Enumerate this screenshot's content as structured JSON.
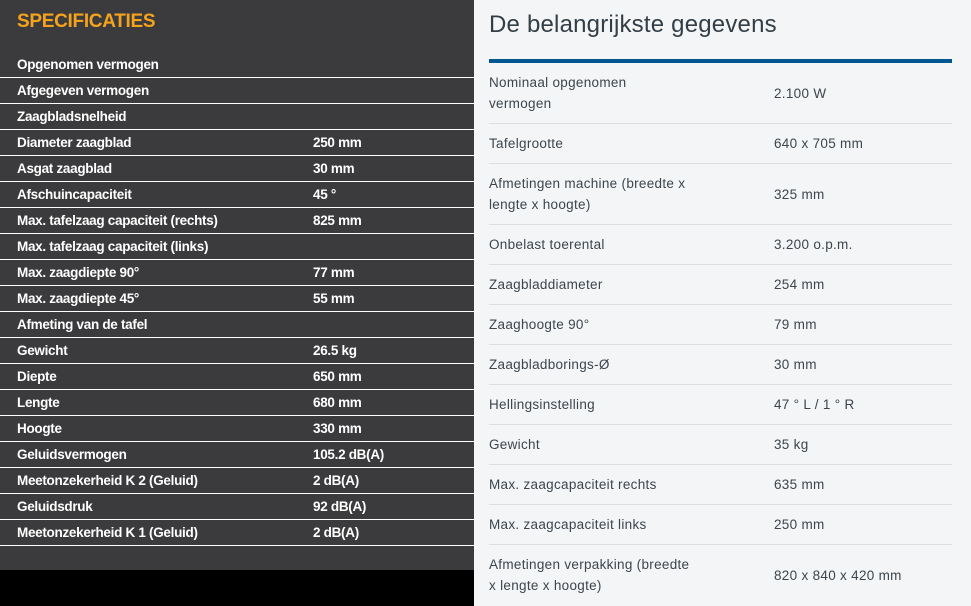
{
  "left_panel": {
    "title": "SPECIFICATIES",
    "title_color": "#f5a31c",
    "bg_color": "#3b3b3d",
    "rows": [
      {
        "label": "Opgenomen vermogen",
        "value": ""
      },
      {
        "label": "Afgegeven vermogen",
        "value": ""
      },
      {
        "label": "Zaagbladsnelheid",
        "value": ""
      },
      {
        "label": "Diameter zaagblad",
        "value": "250 mm"
      },
      {
        "label": "Asgat zaagblad",
        "value": "30 mm"
      },
      {
        "label": "Afschuincapaciteit",
        "value": "45 °"
      },
      {
        "label": "Max. tafelzaag capaciteit (rechts)",
        "value": "825 mm"
      },
      {
        "label": "Max. tafelzaag capaciteit (links)",
        "value": ""
      },
      {
        "label": "Max. zaagdiepte 90°",
        "value": "77 mm"
      },
      {
        "label": "Max. zaagdiepte 45°",
        "value": "55 mm"
      },
      {
        "label": "Afmeting van de tafel",
        "value": ""
      },
      {
        "label": "Gewicht",
        "value": "26.5 kg"
      },
      {
        "label": "Diepte",
        "value": "650 mm"
      },
      {
        "label": "Lengte",
        "value": "680 mm"
      },
      {
        "label": "Hoogte",
        "value": "330 mm"
      },
      {
        "label": "Geluidsvermogen",
        "value": "105.2 dB(A)"
      },
      {
        "label": "Meetonzekerheid K 2 (Geluid)",
        "value": "2 dB(A)"
      },
      {
        "label": "Geluidsdruk",
        "value": "92 dB(A)"
      },
      {
        "label": "Meetonzekerheid K 1 (Geluid)",
        "value": "2 dB(A)"
      }
    ]
  },
  "right_panel": {
    "title": "De belangrijkste gegevens",
    "accent_color": "#005691",
    "bg_color": "#f4f5f6",
    "rows": [
      {
        "label": "Nominaal opgenomen\nvermogen",
        "value": "2.100 W"
      },
      {
        "label": "Tafelgrootte",
        "value": "640 x 705 mm"
      },
      {
        "label": "Afmetingen machine (breedte x\nlengte x hoogte)",
        "value": "325 mm"
      },
      {
        "label": "Onbelast toerental",
        "value": "3.200 o.p.m."
      },
      {
        "label": "Zaagbladdiameter",
        "value": "254 mm"
      },
      {
        "label": "Zaaghoogte 90°",
        "value": "79 mm"
      },
      {
        "label": "Zaagbladborings-Ø",
        "value": "30 mm"
      },
      {
        "label": "Hellingsinstelling",
        "value": "47 ° L / 1 ° R"
      },
      {
        "label": "Gewicht",
        "value": "35 kg"
      },
      {
        "label": "Max. zaagcapaciteit rechts",
        "value": "635 mm"
      },
      {
        "label": "Max. zaagcapaciteit links",
        "value": "250 mm"
      },
      {
        "label": "Afmetingen verpakking (breedte\nx lengte x hoogte)",
        "value": "820 x 840 x 420 mm"
      }
    ]
  }
}
